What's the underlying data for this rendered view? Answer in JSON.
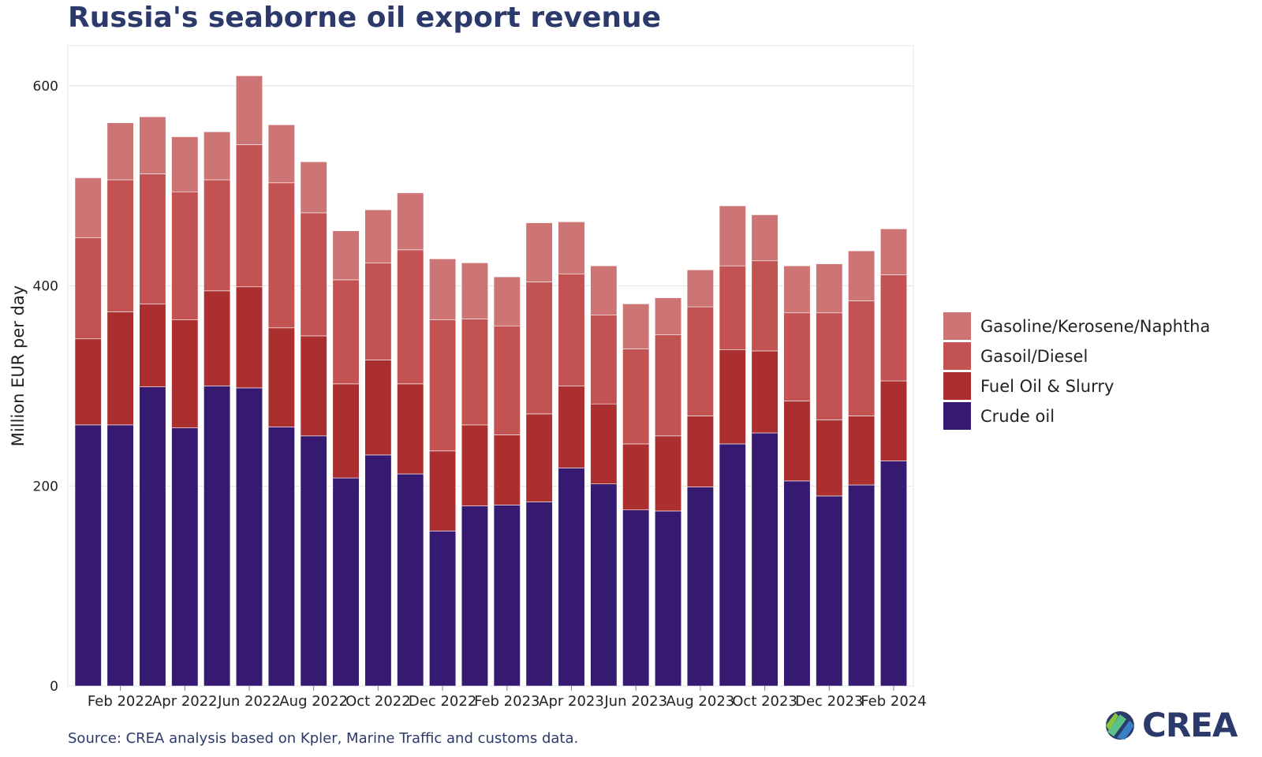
{
  "title": "Russia's seaborne oil export revenue",
  "source": "Source: CREA analysis based on Kpler, Marine Traffic and customs data.",
  "logo": {
    "text": "CREA",
    "icon": "crea-logo-icon"
  },
  "colors": {
    "crude": "#361a72",
    "fuel_oil": "#ac2f2f",
    "gasoil": "#c35252",
    "gasoline": "#cd7474",
    "grid": "#e3e3e3",
    "axis_text": "#222222"
  },
  "chart_data": {
    "type": "bar",
    "stacked": true,
    "ylabel": "Million EUR per day",
    "xlabel": "",
    "ylim": [
      0,
      640
    ],
    "yticks": [
      0,
      200,
      400,
      600
    ],
    "grid": true,
    "legend_position": "right",
    "x_tick_labels": [
      "Feb 2022",
      "Apr 2022",
      "Jun 2022",
      "Aug 2022",
      "Oct 2022",
      "Dec 2022",
      "Feb 2023",
      "Apr 2023",
      "Jun 2023",
      "Aug 2023",
      "Oct 2023",
      "Dec 2023",
      "Feb 2024"
    ],
    "categories": [
      "Jan 2022",
      "Feb 2022",
      "Mar 2022",
      "Apr 2022",
      "May 2022",
      "Jun 2022",
      "Jul 2022",
      "Aug 2022",
      "Sep 2022",
      "Oct 2022",
      "Nov 2022",
      "Dec 2022",
      "Jan 2023",
      "Feb 2023",
      "Mar 2023",
      "Apr 2023",
      "May 2023",
      "Jun 2023",
      "Jul 2023",
      "Aug 2023",
      "Sep 2023",
      "Oct 2023",
      "Nov 2023",
      "Dec 2023",
      "Jan 2024",
      "Feb 2024"
    ],
    "series": [
      {
        "name": "Crude oil",
        "color": "#361a72",
        "values": [
          261,
          261,
          299,
          258,
          300,
          298,
          259,
          250,
          208,
          231,
          212,
          155,
          180,
          181,
          184,
          218,
          202,
          176,
          175,
          199,
          242,
          253,
          205,
          190,
          201,
          225
        ]
      },
      {
        "name": "Fuel Oil & Slurry",
        "color": "#ac2f2f",
        "values": [
          86,
          113,
          83,
          108,
          95,
          101,
          99,
          100,
          94,
          95,
          90,
          80,
          81,
          70,
          88,
          82,
          80,
          66,
          75,
          71,
          94,
          82,
          80,
          76,
          69,
          80
        ]
      },
      {
        "name": "Gasoil/Diesel",
        "color": "#c35252",
        "values": [
          101,
          132,
          130,
          128,
          111,
          142,
          145,
          123,
          104,
          97,
          134,
          131,
          106,
          109,
          132,
          112,
          89,
          95,
          101,
          109,
          84,
          90,
          88,
          107,
          115,
          106
        ]
      },
      {
        "name": "Gasoline/Kerosene/Naphtha",
        "color": "#cd7474",
        "values": [
          60,
          57,
          57,
          55,
          48,
          69,
          58,
          51,
          49,
          53,
          57,
          61,
          56,
          49,
          59,
          52,
          49,
          45,
          37,
          37,
          60,
          46,
          47,
          49,
          50,
          46
        ]
      }
    ]
  }
}
